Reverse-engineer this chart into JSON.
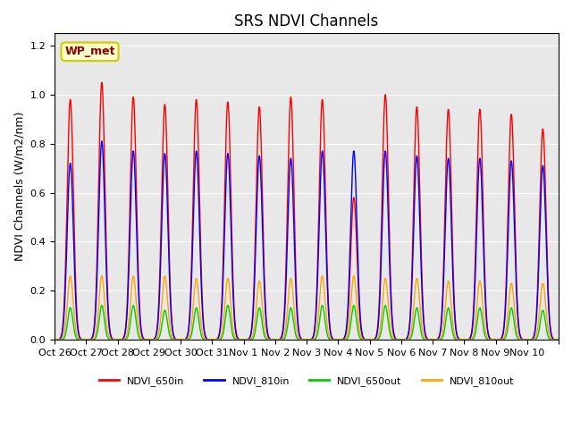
{
  "title": "SRS NDVI Channels",
  "ylabel": "NDVI Channels (W/m2/nm)",
  "xlabel": "",
  "ylim": [
    0.0,
    1.25
  ],
  "background_color": "#e8e8e8",
  "annotation_text": "WP_met",
  "annotation_color": "#8B0000",
  "annotation_bg": "#ffffcc",
  "series": [
    {
      "label": "NDVI_650in",
      "color": "#ff0000"
    },
    {
      "label": "NDVI_810in",
      "color": "#0000ff"
    },
    {
      "label": "NDVI_650out",
      "color": "#00cc00"
    },
    {
      "label": "NDVI_810out",
      "color": "#ffa500"
    }
  ],
  "x_tick_labels": [
    "Oct 26",
    "Oct 27",
    "Oct 28",
    "Oct 29",
    "Oct 30",
    "Oct 31",
    "Nov 1",
    "Nov 2",
    "Nov 3",
    "Nov 4",
    "Nov 5",
    "Nov 6",
    "Nov 7",
    "Nov 8",
    "Nov 9",
    "Nov 10"
  ],
  "num_days": 16,
  "peaks_650in": [
    0.98,
    1.05,
    0.99,
    0.96,
    0.98,
    0.97,
    0.95,
    0.99,
    0.98,
    0.58,
    1.0,
    0.95,
    0.94,
    0.94,
    0.92,
    0.86
  ],
  "peaks_810in": [
    0.72,
    0.81,
    0.77,
    0.76,
    0.77,
    0.76,
    0.75,
    0.74,
    0.77,
    0.77,
    0.77,
    0.75,
    0.74,
    0.74,
    0.73,
    0.71
  ],
  "peaks_650out": [
    0.13,
    0.14,
    0.14,
    0.12,
    0.13,
    0.14,
    0.13,
    0.13,
    0.14,
    0.14,
    0.14,
    0.13,
    0.13,
    0.13,
    0.13,
    0.12
  ],
  "peaks_810out": [
    0.26,
    0.26,
    0.26,
    0.26,
    0.25,
    0.25,
    0.24,
    0.25,
    0.26,
    0.26,
    0.25,
    0.25,
    0.24,
    0.24,
    0.23,
    0.23
  ]
}
